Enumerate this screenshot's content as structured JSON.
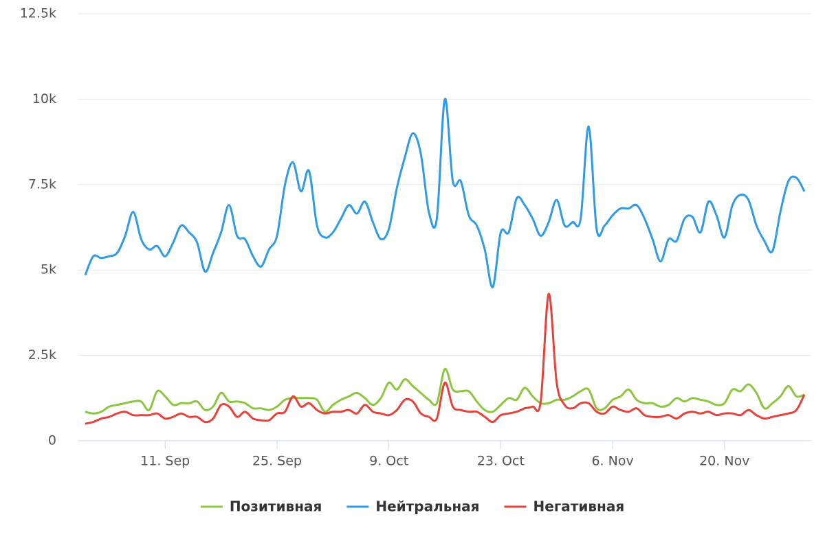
{
  "chart_data": {
    "type": "line",
    "categories": [
      null,
      null,
      null,
      null,
      null,
      null,
      null,
      null,
      null,
      null,
      "11. Sep",
      null,
      null,
      null,
      null,
      null,
      null,
      null,
      null,
      null,
      null,
      null,
      null,
      null,
      "25. Sep",
      null,
      null,
      null,
      null,
      null,
      null,
      null,
      null,
      null,
      null,
      null,
      null,
      null,
      "9. Oct",
      null,
      null,
      null,
      null,
      null,
      null,
      null,
      null,
      null,
      null,
      null,
      null,
      null,
      "23. Oct",
      null,
      null,
      null,
      null,
      null,
      null,
      null,
      null,
      null,
      null,
      null,
      null,
      null,
      "6. Nov",
      null,
      null,
      null,
      null,
      null,
      null,
      null,
      null,
      null,
      null,
      null,
      null,
      null,
      "20. Nov",
      null,
      null,
      null,
      null,
      null,
      null,
      null,
      null,
      null,
      null
    ],
    "series": [
      {
        "name": "Позитивная",
        "color": "#8cc63f",
        "values": [
          850,
          800,
          850,
          1000,
          1050,
          1100,
          1150,
          1150,
          900,
          1450,
          1300,
          1050,
          1100,
          1100,
          1150,
          900,
          1000,
          1400,
          1150,
          1150,
          1100,
          950,
          950,
          900,
          1000,
          1200,
          1250,
          1250,
          1250,
          1200,
          850,
          1050,
          1200,
          1300,
          1400,
          1250,
          1050,
          1250,
          1700,
          1500,
          1800,
          1600,
          1400,
          1200,
          1100,
          2100,
          1500,
          1450,
          1450,
          1150,
          900,
          850,
          1050,
          1250,
          1200,
          1550,
          1300,
          1100,
          1100,
          1200,
          1200,
          1300,
          1450,
          1500,
          950,
          950,
          1200,
          1300,
          1500,
          1200,
          1100,
          1100,
          1000,
          1050,
          1250,
          1150,
          1250,
          1200,
          1150,
          1050,
          1100,
          1500,
          1450,
          1650,
          1400,
          950,
          1100,
          1300,
          1600,
          1300,
          1350
        ]
      },
      {
        "name": "Нейтральная",
        "color": "#2f9ae6",
        "values": [
          4850,
          5400,
          5350,
          5400,
          5500,
          6000,
          6700,
          5900,
          5600,
          5700,
          5400,
          5800,
          6300,
          6100,
          5800,
          4950,
          5500,
          6100,
          6900,
          6000,
          5900,
          5400,
          5100,
          5600,
          6000,
          7500,
          8150,
          7300,
          7900,
          6300,
          5950,
          6100,
          6500,
          6900,
          6650,
          7000,
          6400,
          5900,
          6200,
          7400,
          8300,
          9000,
          8400,
          6700,
          6500,
          10000,
          7600,
          7600,
          6600,
          6300,
          5600,
          4500,
          6100,
          6100,
          7100,
          6900,
          6500,
          6000,
          6400,
          7050,
          6300,
          6400,
          6500,
          9200,
          6200,
          6300,
          6600,
          6800,
          6800,
          6900,
          6500,
          5900,
          5250,
          5900,
          5850,
          6500,
          6550,
          6100,
          7000,
          6600,
          5950,
          6900,
          7200,
          7050,
          6300,
          5850,
          5550,
          6700,
          7600,
          7700,
          7300
        ]
      },
      {
        "name": "Негативная",
        "color": "#e8413a",
        "values": [
          500,
          550,
          650,
          700,
          800,
          850,
          750,
          750,
          750,
          800,
          650,
          700,
          800,
          700,
          700,
          550,
          650,
          1050,
          1000,
          700,
          850,
          650,
          600,
          600,
          800,
          850,
          1300,
          1000,
          1100,
          900,
          800,
          850,
          850,
          900,
          800,
          1050,
          850,
          800,
          750,
          900,
          1200,
          1150,
          800,
          700,
          650,
          1700,
          1000,
          900,
          850,
          850,
          700,
          550,
          750,
          800,
          850,
          950,
          1000,
          1150,
          4300,
          1700,
          1050,
          950,
          1100,
          1100,
          850,
          800,
          1000,
          900,
          850,
          950,
          750,
          700,
          700,
          750,
          650,
          800,
          850,
          800,
          850,
          750,
          800,
          800,
          750,
          900,
          750,
          650,
          700,
          750,
          800,
          900,
          1350
        ]
      }
    ],
    "ylim": [
      0,
      12500
    ],
    "yticks": [
      0,
      {
        "value": 2500,
        "label": "2.5k"
      },
      {
        "value": 5000,
        "label": "5k"
      },
      {
        "value": 7500,
        "label": "7.5k"
      },
      {
        "value": 10000,
        "label": "10k"
      },
      {
        "value": 12500,
        "label": "12.5k"
      }
    ],
    "grid": true,
    "legend": "bottom"
  }
}
